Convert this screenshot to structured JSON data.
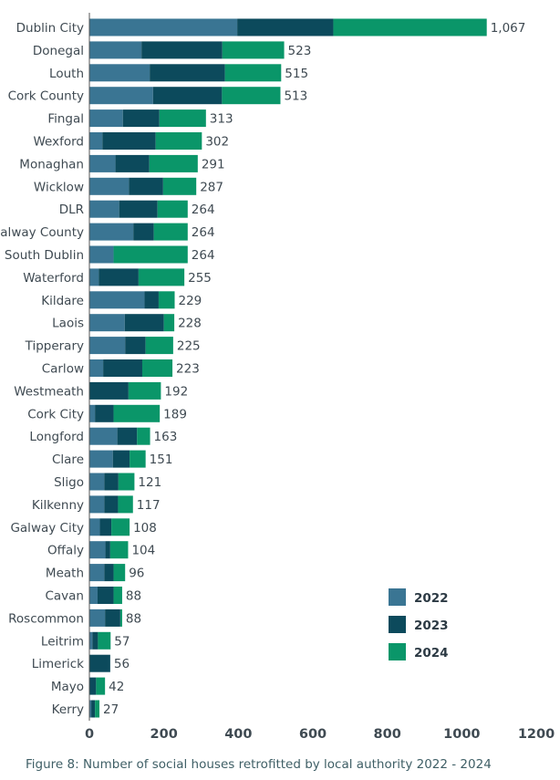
{
  "chart_data": {
    "type": "bar",
    "orientation": "horizontal",
    "stacked": true,
    "categories": [
      "Dublin City",
      "Donegal",
      "Louth",
      "Cork County",
      "Fingal",
      "Wexford",
      "Monaghan",
      "Wicklow",
      "DLR",
      "Galway County",
      "South Dublin",
      "Waterford",
      "Kildare",
      "Laois",
      "Tipperary",
      "Carlow",
      "Westmeath",
      "Cork City",
      "Longford",
      "Clare",
      "Sligo",
      "Kilkenny",
      "Galway City",
      "Offaly",
      "Meath",
      "Cavan",
      "Roscommon",
      "Leitrim",
      "Limerick",
      "Mayo",
      "Kerry"
    ],
    "totals": [
      "1,067",
      "523",
      "515",
      "513",
      "313",
      "302",
      "291",
      "287",
      "264",
      "264",
      "264",
      "255",
      "229",
      "228",
      "225",
      "223",
      "192",
      "189",
      "163",
      "151",
      "121",
      "117",
      "108",
      "104",
      "96",
      "88",
      "88",
      "57",
      "56",
      "42",
      "27"
    ],
    "series": [
      {
        "name": "2022",
        "color": "#3a7593",
        "values": [
          397,
          140,
          162,
          171,
          90,
          35,
          70,
          106,
          80,
          118,
          65,
          25,
          148,
          95,
          96,
          37,
          0,
          15,
          75,
          63,
          40,
          40,
          28,
          43,
          40,
          22,
          42,
          8,
          0,
          0,
          5
        ]
      },
      {
        "name": "2023",
        "color": "#0c4a5c",
        "values": [
          258,
          217,
          202,
          185,
          98,
          143,
          91,
          92,
          103,
          55,
          0,
          107,
          38,
          105,
          55,
          105,
          105,
          50,
          53,
          45,
          38,
          37,
          31,
          13,
          25,
          43,
          41,
          15,
          56,
          18,
          10
        ]
      },
      {
        "name": "2024",
        "color": "#0a9669",
        "values": [
          412,
          166,
          151,
          157,
          125,
          124,
          130,
          89,
          81,
          91,
          199,
          123,
          43,
          28,
          74,
          81,
          87,
          124,
          35,
          43,
          43,
          40,
          49,
          48,
          31,
          23,
          5,
          34,
          0,
          24,
          12
        ]
      }
    ],
    "xlim": [
      0,
      1200
    ],
    "xticks": [
      "0",
      "200",
      "400",
      "600",
      "800",
      "1000",
      "1200"
    ],
    "legend": {
      "position": "right",
      "entries": [
        "2022",
        "2023",
        "2024"
      ]
    },
    "grid": false,
    "caption": "Figure 8: Number of social houses retrofitted by local authority 2022 - 2024"
  }
}
